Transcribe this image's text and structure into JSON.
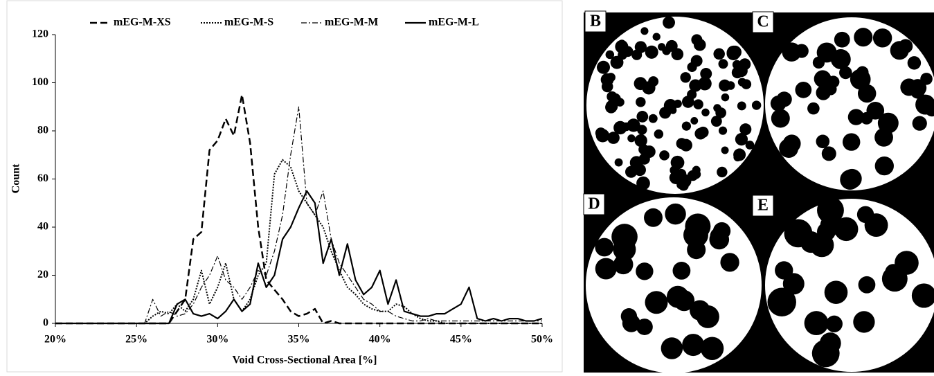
{
  "chart_data": {
    "type": "line",
    "x_label": "Void Cross-Sectional Area [%]",
    "y_label": "Count",
    "x": [
      20,
      20.5,
      21,
      21.5,
      22,
      22.5,
      23,
      23.5,
      24,
      24.5,
      25,
      25.5,
      26,
      26.5,
      27,
      27.5,
      28,
      28.5,
      29,
      29.5,
      30,
      30.5,
      31,
      31.5,
      32,
      32.5,
      33,
      33.5,
      34,
      34.5,
      35,
      35.5,
      36,
      36.5,
      37,
      37.5,
      38,
      38.5,
      39,
      39.5,
      40,
      40.5,
      41,
      41.5,
      42,
      42.5,
      43,
      43.5,
      44,
      44.5,
      45,
      45.5,
      46,
      46.5,
      47,
      47.5,
      48,
      48.5,
      49,
      49.5,
      50
    ],
    "series": [
      {
        "name": "mEG-M-XS",
        "color": "#000000",
        "style": "dashed",
        "values": [
          0,
          0,
          0,
          0,
          0,
          0,
          0,
          0,
          0,
          0,
          0,
          0,
          0,
          0,
          0,
          5,
          10,
          35,
          38,
          72,
          76,
          85,
          78,
          95,
          75,
          40,
          18,
          14,
          10,
          5,
          3,
          4,
          6,
          0,
          1,
          0,
          0,
          0,
          0,
          0,
          0,
          0,
          0,
          0,
          0,
          0,
          0,
          0,
          0,
          0,
          0,
          0,
          0,
          0,
          0,
          0,
          0,
          0,
          0,
          0,
          0
        ]
      },
      {
        "name": "mEG-M-S",
        "color": "#000000",
        "style": "dotted",
        "values": [
          0,
          0,
          0,
          0,
          0,
          0,
          0,
          0,
          0,
          0,
          0,
          0,
          3,
          5,
          4,
          8,
          5,
          10,
          22,
          8,
          15,
          25,
          10,
          5,
          10,
          20,
          25,
          62,
          68,
          65,
          55,
          50,
          45,
          40,
          30,
          22,
          15,
          12,
          8,
          6,
          5,
          5,
          8,
          7,
          4,
          2,
          1,
          1,
          0,
          0,
          0,
          0,
          0,
          0,
          0,
          0,
          0,
          0,
          0,
          0,
          0
        ]
      },
      {
        "name": "mEG-M-M",
        "color": "#000000",
        "style": "dashdot",
        "values": [
          0,
          0,
          0,
          0,
          0,
          0,
          0,
          0,
          0,
          0,
          0,
          0,
          10,
          3,
          5,
          3,
          4,
          8,
          15,
          20,
          28,
          18,
          15,
          10,
          15,
          22,
          20,
          30,
          45,
          70,
          90,
          50,
          45,
          55,
          35,
          25,
          20,
          15,
          10,
          8,
          5,
          5,
          3,
          2,
          1,
          1,
          2,
          1,
          1,
          1,
          1,
          1,
          1,
          1,
          1,
          1,
          1,
          1,
          1,
          1,
          1
        ]
      },
      {
        "name": "mEG-M-L",
        "color": "#000000",
        "style": "solid",
        "values": [
          0,
          0,
          0,
          0,
          0,
          0,
          0,
          0,
          0,
          0,
          0,
          0,
          0,
          0,
          0,
          8,
          10,
          4,
          3,
          4,
          2,
          5,
          10,
          5,
          8,
          25,
          15,
          20,
          35,
          40,
          48,
          55,
          50,
          25,
          35,
          20,
          33,
          18,
          12,
          15,
          22,
          8,
          18,
          5,
          4,
          3,
          3,
          4,
          4,
          6,
          8,
          15,
          2,
          1,
          2,
          1,
          2,
          2,
          1,
          1,
          2
        ]
      }
    ],
    "xlim": [
      20,
      50
    ],
    "xticks": [
      {
        "value": 20,
        "label": "20%"
      },
      {
        "value": 25,
        "label": "25%"
      },
      {
        "value": 30,
        "label": "30%"
      },
      {
        "value": 35,
        "label": "35%"
      },
      {
        "value": 40,
        "label": "40%"
      },
      {
        "value": 45,
        "label": "45%"
      },
      {
        "value": 50,
        "label": "50%"
      }
    ],
    "ylim": [
      0,
      120
    ],
    "yticks": [
      0,
      20,
      40,
      60,
      80,
      100,
      120
    ],
    "grid": false,
    "legend": "top"
  },
  "image_panels": {
    "labels": [
      "B",
      "C",
      "D",
      "E"
    ]
  }
}
